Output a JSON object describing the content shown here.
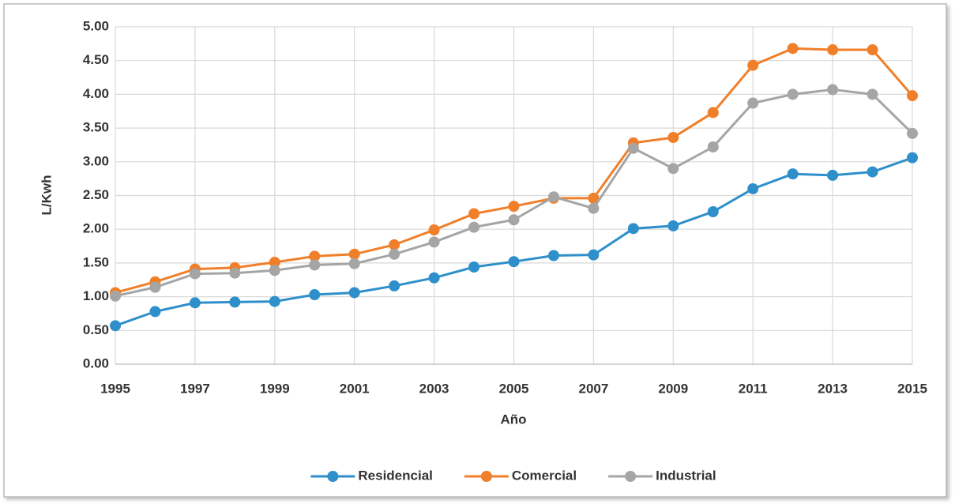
{
  "chart_data": {
    "type": "line",
    "xlabel": "Año",
    "ylabel": "L/Kwh",
    "x": [
      1995,
      1996,
      1997,
      1998,
      1999,
      2000,
      2001,
      2002,
      2003,
      2004,
      2005,
      2006,
      2007,
      2008,
      2009,
      2010,
      2011,
      2012,
      2013,
      2014,
      2015
    ],
    "series": [
      {
        "name": "Residencial",
        "color": "#2e8fca",
        "values": [
          0.57,
          0.78,
          0.91,
          0.92,
          0.93,
          1.03,
          1.06,
          1.16,
          1.28,
          1.44,
          1.52,
          1.61,
          1.62,
          2.01,
          2.05,
          2.26,
          2.6,
          2.82,
          2.8,
          2.85,
          3.06
        ]
      },
      {
        "name": "Comercial",
        "color": "#f07f2a",
        "values": [
          1.06,
          1.22,
          1.41,
          1.43,
          1.51,
          1.6,
          1.63,
          1.77,
          1.99,
          2.23,
          2.34,
          2.46,
          2.46,
          3.28,
          3.36,
          3.73,
          4.43,
          4.68,
          4.66,
          4.66,
          3.98
        ]
      },
      {
        "name": "Industrial",
        "color": "#a5a5a5",
        "values": [
          1.01,
          1.14,
          1.34,
          1.35,
          1.39,
          1.47,
          1.49,
          1.63,
          1.81,
          2.03,
          2.14,
          2.48,
          2.31,
          3.2,
          2.9,
          3.22,
          3.87,
          4.0,
          4.07,
          4.0,
          3.42
        ]
      }
    ],
    "xlim": [
      1995,
      2015
    ],
    "xticks": [
      1995,
      1997,
      1999,
      2001,
      2003,
      2005,
      2007,
      2009,
      2011,
      2013,
      2015
    ],
    "ylim": [
      0,
      5
    ],
    "yticks": [
      {
        "value": 0,
        "label": "0.00"
      },
      {
        "value": 0.5,
        "label": "0.50"
      },
      {
        "value": 1,
        "label": "1.00"
      },
      {
        "value": 1.5,
        "label": "1.50"
      },
      {
        "value": 2,
        "label": "2.00"
      },
      {
        "value": 2.5,
        "label": "2.50"
      },
      {
        "value": 3,
        "label": "3.00"
      },
      {
        "value": 3.5,
        "label": "3.50"
      },
      {
        "value": 4,
        "label": "4.00"
      },
      {
        "value": 4.5,
        "label": "4.50"
      },
      {
        "value": 5,
        "label": "5.00"
      }
    ],
    "grid": true,
    "legend": "bottom"
  }
}
